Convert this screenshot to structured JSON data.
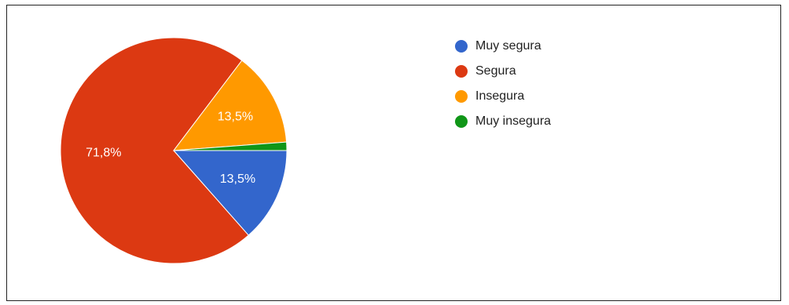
{
  "chart_data": {
    "type": "pie",
    "title": "",
    "series": [
      {
        "name": "Muy segura",
        "value": 13.5,
        "label": "13,5%",
        "color": "#3366cc"
      },
      {
        "name": "Segura",
        "value": 71.8,
        "label": "71,8%",
        "color": "#dc3912"
      },
      {
        "name": "Insegura",
        "value": 13.5,
        "label": "13,5%",
        "color": "#ff9900"
      },
      {
        "name": "Muy insegura",
        "value": 1.2,
        "label": "",
        "color": "#109618"
      }
    ],
    "legend_position": "right"
  }
}
